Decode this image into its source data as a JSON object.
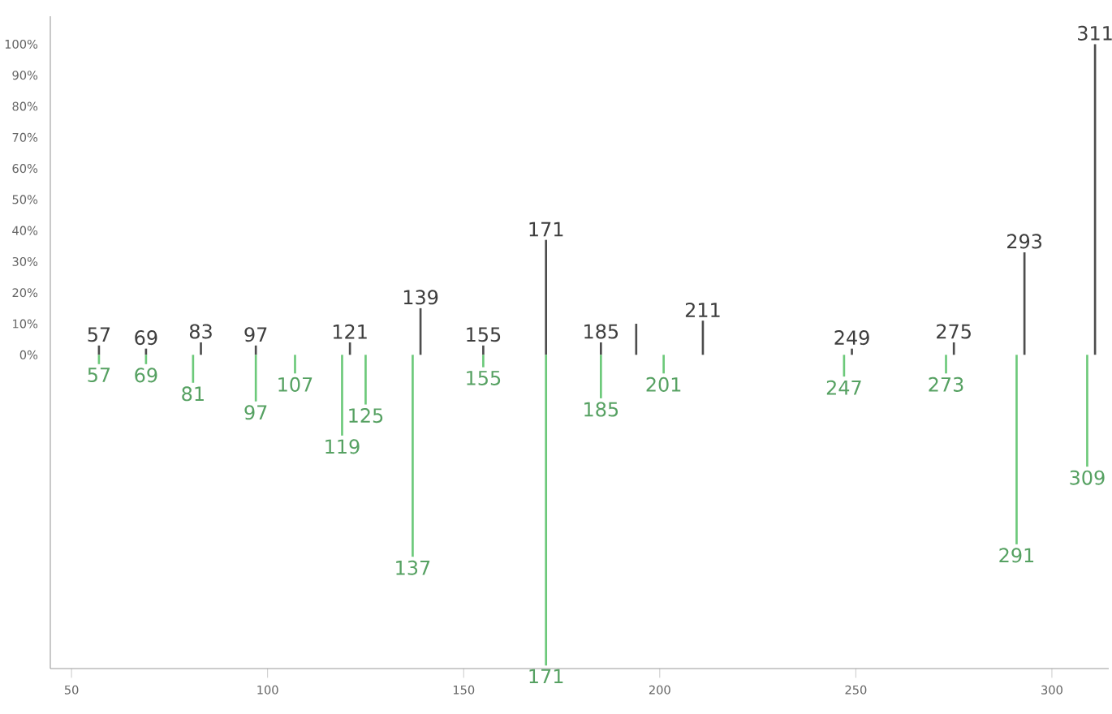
{
  "chart_data": {
    "type": "bar",
    "xlim": [
      44.6,
      314.5
    ],
    "ylim": [
      -101,
      109
    ],
    "xticks": [
      50,
      100,
      150,
      200,
      250,
      300
    ],
    "yticks": [
      {
        "value": 0,
        "label": "0%"
      },
      {
        "value": 10,
        "label": "10%"
      },
      {
        "value": 20,
        "label": "20%"
      },
      {
        "value": 30,
        "label": "30%"
      },
      {
        "value": 40,
        "label": "40%"
      },
      {
        "value": 50,
        "label": "50%"
      },
      {
        "value": 60,
        "label": "60%"
      },
      {
        "value": 70,
        "label": "70%"
      },
      {
        "value": 80,
        "label": "80%"
      },
      {
        "value": 90,
        "label": "90%"
      },
      {
        "value": 100,
        "label": "100%"
      }
    ],
    "grid": false,
    "series": [
      {
        "color": "#4d4d4d",
        "x": [
          57,
          69,
          83,
          97,
          121,
          139,
          155,
          171,
          185,
          194,
          211,
          249,
          275,
          293,
          311
        ],
        "values": [
          3,
          2,
          4,
          3,
          4,
          15,
          3,
          37,
          4,
          10,
          11,
          2,
          4,
          33,
          100
        ]
      },
      {
        "color": "#6cc97a",
        "x": [
          57,
          69,
          81,
          97,
          107,
          119,
          125,
          137,
          155,
          171,
          185,
          201,
          247,
          273,
          291,
          309
        ],
        "values": [
          -3,
          -3,
          -9,
          -15,
          -6,
          -26,
          -16,
          -65,
          -4,
          -100,
          -14,
          -6,
          -7,
          -6,
          -61,
          -36
        ]
      }
    ],
    "annotations": [
      {
        "text": "57",
        "x": 57,
        "y": 3
      },
      {
        "text": "69",
        "x": 69,
        "y": 2
      },
      {
        "text": "83",
        "x": 83,
        "y": 4
      },
      {
        "text": "97",
        "x": 97,
        "y": 3
      },
      {
        "text": "121",
        "x": 121,
        "y": 4
      },
      {
        "text": "139",
        "x": 139,
        "y": 15
      },
      {
        "text": "155",
        "x": 155,
        "y": 3
      },
      {
        "text": "171",
        "x": 171,
        "y": 37
      },
      {
        "text": "185",
        "x": 185,
        "y": 4
      },
      {
        "text": "211",
        "x": 211,
        "y": 11
      },
      {
        "text": "249",
        "x": 249,
        "y": 2
      },
      {
        "text": "275",
        "x": 275,
        "y": 4
      },
      {
        "text": "293",
        "x": 293,
        "y": 33
      },
      {
        "text": "311",
        "x": 311,
        "y": 100
      },
      {
        "text": "57",
        "x": 57,
        "y": -3
      },
      {
        "text": "69",
        "x": 69,
        "y": -3
      },
      {
        "text": "81",
        "x": 81,
        "y": -9
      },
      {
        "text": "97",
        "x": 97,
        "y": -15
      },
      {
        "text": "107",
        "x": 107,
        "y": -6
      },
      {
        "text": "119",
        "x": 119,
        "y": -26
      },
      {
        "text": "125",
        "x": 125,
        "y": -16
      },
      {
        "text": "137",
        "x": 137,
        "y": -65
      },
      {
        "text": "155",
        "x": 155,
        "y": -4
      },
      {
        "text": "171",
        "x": 171,
        "y": -100
      },
      {
        "text": "185",
        "x": 185,
        "y": -14
      },
      {
        "text": "201",
        "x": 201,
        "y": -6
      },
      {
        "text": "247",
        "x": 247,
        "y": -7
      },
      {
        "text": "273",
        "x": 273,
        "y": -6
      },
      {
        "text": "291",
        "x": 291,
        "y": -61
      },
      {
        "text": "309",
        "x": 309,
        "y": -36
      }
    ]
  }
}
